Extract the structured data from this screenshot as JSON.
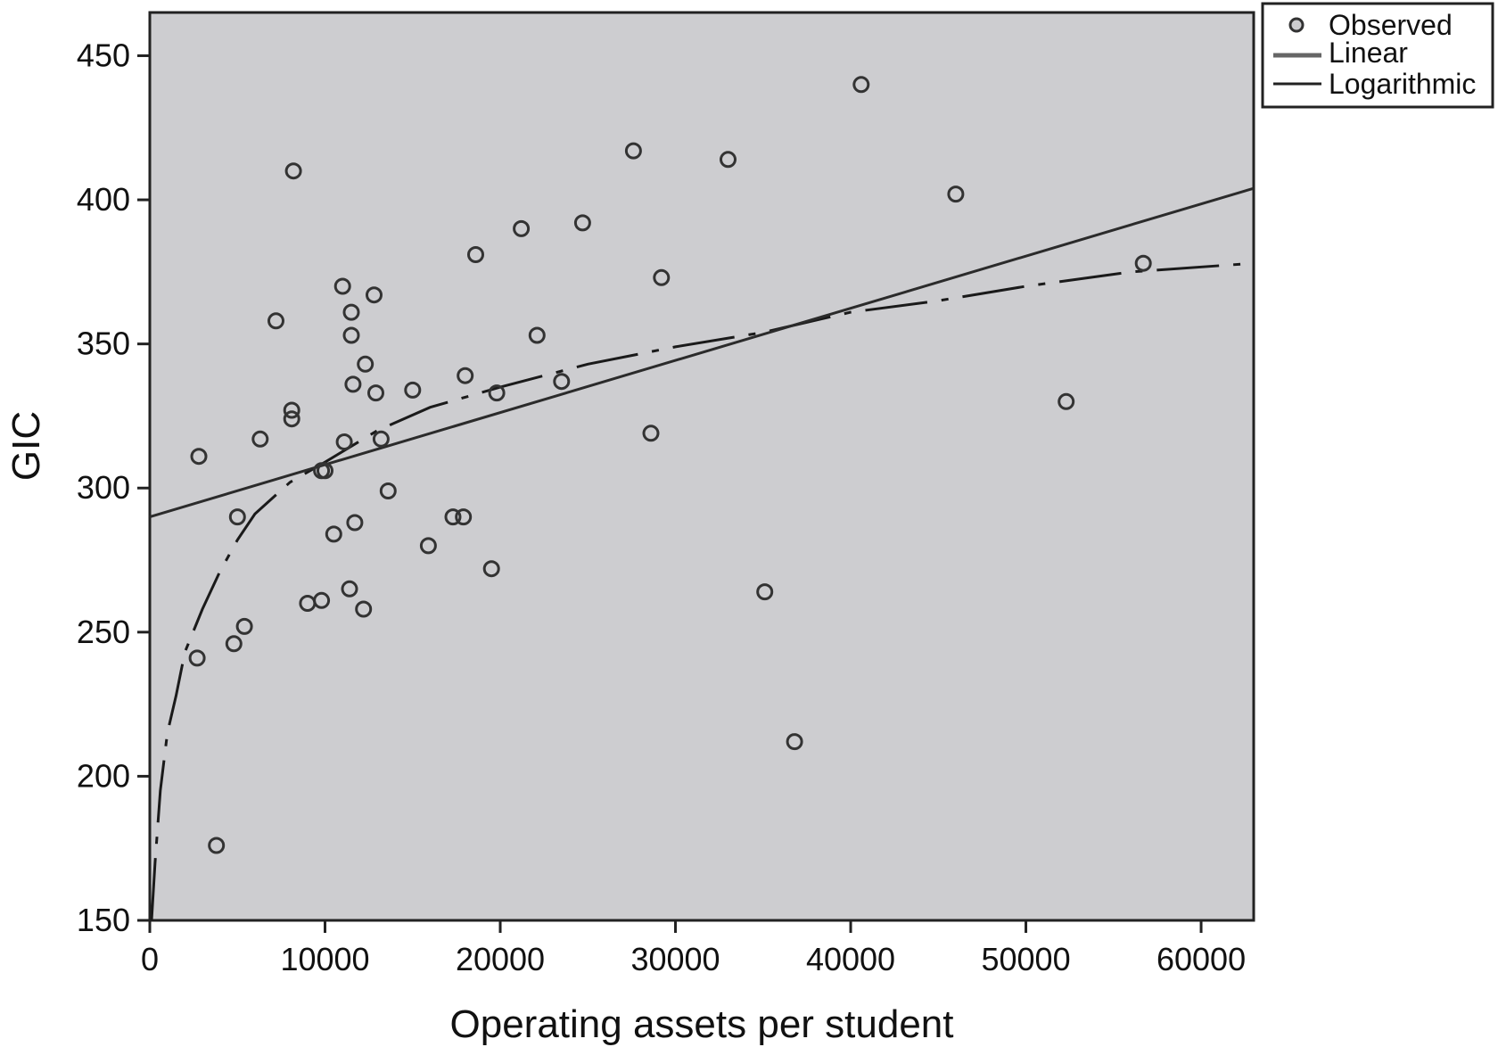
{
  "chart_data": {
    "type": "scatter",
    "xlabel": "Operating assets per student",
    "ylabel": "GIC",
    "xlim": [
      0,
      63000
    ],
    "ylim": [
      150,
      465
    ],
    "x_ticks": [
      0,
      10000,
      20000,
      30000,
      40000,
      50000,
      60000
    ],
    "y_ticks": [
      150,
      200,
      250,
      300,
      350,
      400,
      450
    ],
    "x_tick_labels": [
      "0",
      "10000",
      "20000",
      "30000",
      "40000",
      "50000",
      "60000"
    ],
    "y_tick_labels": [
      "150",
      "200",
      "250",
      "300",
      "350",
      "400",
      "450"
    ],
    "grid": false,
    "legend_position": "top-right",
    "legend": [
      "Observed",
      "Linear",
      "Logarithmic"
    ],
    "colors": {
      "plot_background": "#cdcdd0",
      "marks": "#333333"
    },
    "series": [
      {
        "name": "Observed",
        "kind": "points",
        "points": [
          [
            2800,
            311
          ],
          [
            2700,
            241
          ],
          [
            3800,
            176
          ],
          [
            4800,
            246
          ],
          [
            5000,
            290
          ],
          [
            5400,
            252
          ],
          [
            6300,
            317
          ],
          [
            7200,
            358
          ],
          [
            8100,
            327
          ],
          [
            8100,
            324
          ],
          [
            8200,
            410
          ],
          [
            9000,
            260
          ],
          [
            9800,
            261
          ],
          [
            9800,
            306
          ],
          [
            10000,
            306
          ],
          [
            10500,
            284
          ],
          [
            11000,
            370
          ],
          [
            11100,
            316
          ],
          [
            11400,
            265
          ],
          [
            11500,
            361
          ],
          [
            11500,
            353
          ],
          [
            11600,
            336
          ],
          [
            11700,
            288
          ],
          [
            12200,
            258
          ],
          [
            12300,
            343
          ],
          [
            12800,
            367
          ],
          [
            12900,
            333
          ],
          [
            13200,
            317
          ],
          [
            13600,
            299
          ],
          [
            15000,
            334
          ],
          [
            15900,
            280
          ],
          [
            17300,
            290
          ],
          [
            17900,
            290
          ],
          [
            18000,
            339
          ],
          [
            18600,
            381
          ],
          [
            19500,
            272
          ],
          [
            19800,
            333
          ],
          [
            21200,
            390
          ],
          [
            22100,
            353
          ],
          [
            23500,
            337
          ],
          [
            24700,
            392
          ],
          [
            27600,
            417
          ],
          [
            28600,
            319
          ],
          [
            29200,
            373
          ],
          [
            33000,
            414
          ],
          [
            35100,
            264
          ],
          [
            36800,
            212
          ],
          [
            40600,
            440
          ],
          [
            46000,
            402
          ],
          [
            52300,
            330
          ],
          [
            56700,
            378
          ]
        ]
      },
      {
        "name": "Linear",
        "kind": "line",
        "points": [
          [
            0,
            290
          ],
          [
            63000,
            404
          ]
        ]
      },
      {
        "name": "Logarithmic",
        "kind": "line",
        "points": [
          [
            100,
            150
          ],
          [
            300,
            170
          ],
          [
            600,
            195
          ],
          [
            1000,
            215
          ],
          [
            1500,
            228
          ],
          [
            2000,
            243
          ],
          [
            3000,
            258
          ],
          [
            4000,
            271
          ],
          [
            5000,
            282
          ],
          [
            6000,
            291
          ],
          [
            8000,
            302
          ],
          [
            10000,
            309
          ],
          [
            13000,
            320
          ],
          [
            16000,
            328
          ],
          [
            20000,
            335
          ],
          [
            25000,
            343
          ],
          [
            30000,
            349
          ],
          [
            35000,
            354
          ],
          [
            40000,
            361
          ],
          [
            45000,
            365
          ],
          [
            50000,
            370
          ],
          [
            56000,
            375
          ],
          [
            63000,
            378
          ]
        ]
      }
    ]
  }
}
